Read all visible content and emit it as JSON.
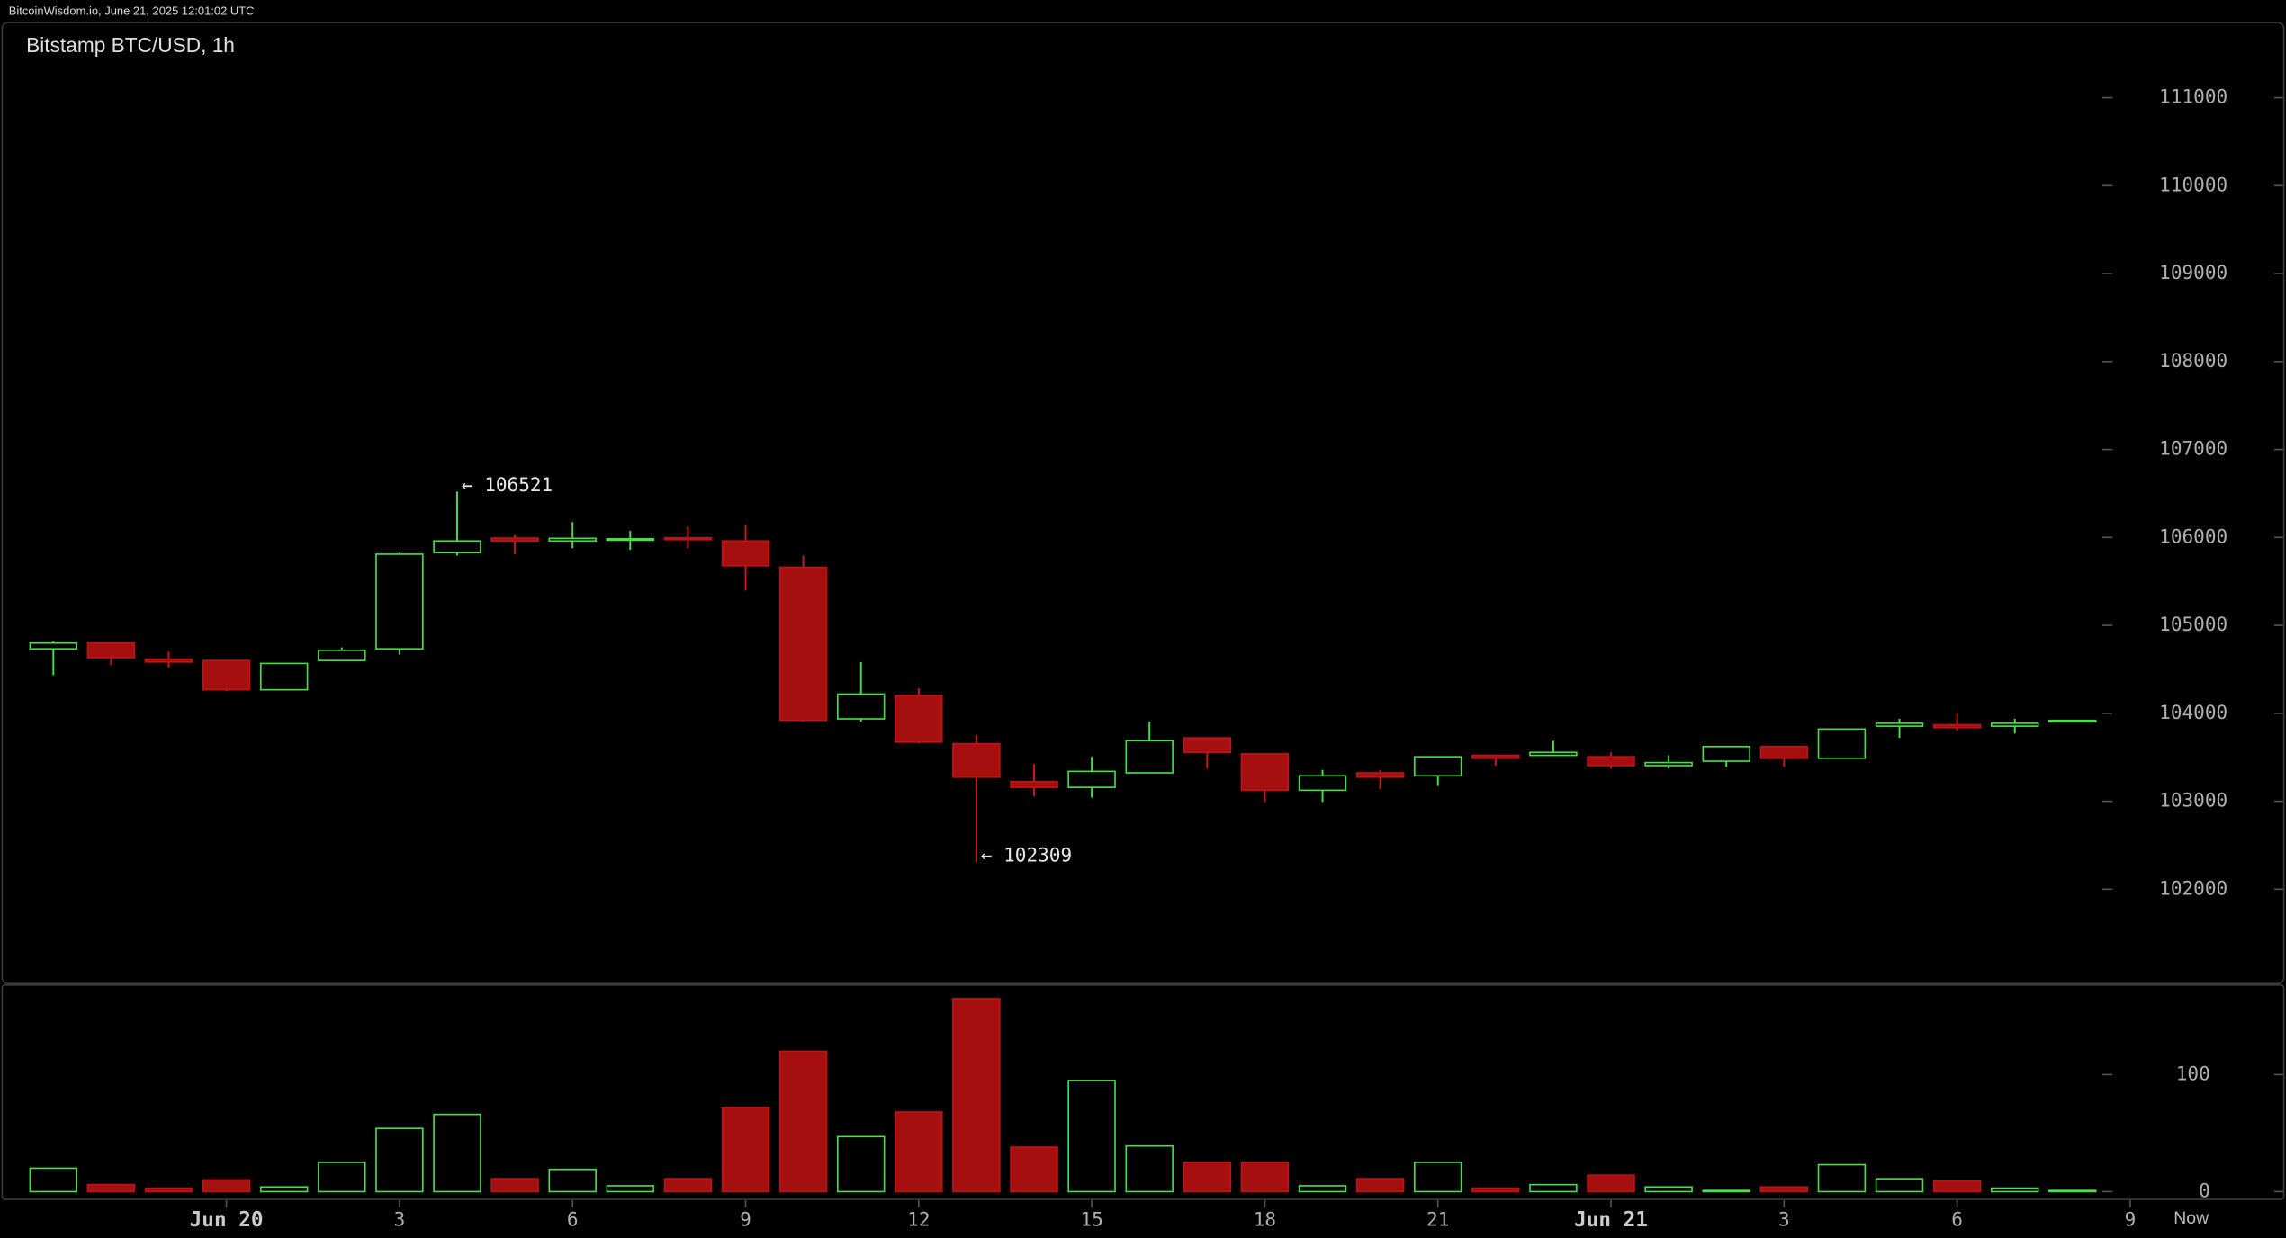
{
  "chart_data": {
    "type": "candlestick",
    "header": "BitcoinWisdom.io, June 21, 2025 12:01:02 UTC",
    "title": "Bitstamp BTC/USD, 1h",
    "up_color": "#47e047",
    "down_color": "#a50f0f",
    "x": [
      0,
      1,
      2,
      3,
      4,
      5,
      6,
      7,
      8,
      9,
      10,
      11,
      12,
      13,
      14,
      15,
      16,
      17,
      18,
      19,
      20,
      21,
      22,
      23,
      24,
      25,
      26,
      27,
      28,
      29,
      30,
      31,
      32,
      33,
      34,
      35
    ],
    "open": [
      104733,
      104799,
      104617,
      104600,
      104268,
      104600,
      104733,
      105827,
      105993,
      105960,
      105970,
      105995,
      105960,
      105661,
      103937,
      104202,
      103655,
      103224,
      103158,
      103323,
      103721,
      103539,
      103125,
      103323,
      103290,
      103522,
      103522,
      103506,
      103406,
      103456,
      103622,
      103489,
      103854,
      103870,
      103854,
      103904
    ],
    "high": [
      104816,
      104799,
      104700,
      104600,
      104567,
      104749,
      105826,
      106521,
      106026,
      106175,
      106076,
      106126,
      106142,
      105794,
      104583,
      104285,
      103755,
      103423,
      103506,
      103904,
      103721,
      103539,
      103357,
      103357,
      103506,
      103522,
      103688,
      103556,
      103522,
      103622,
      103622,
      103821,
      103937,
      104003,
      103937,
      103920
    ],
    "low": [
      104434,
      104550,
      104517,
      104252,
      104268,
      104600,
      104667,
      105794,
      105810,
      105877,
      105860,
      105877,
      105396,
      103904,
      103904,
      103655,
      102309,
      103058,
      103042,
      103323,
      103373,
      102992,
      102992,
      103141,
      103174,
      103406,
      103522,
      103373,
      103373,
      103390,
      103390,
      103489,
      103721,
      103804,
      103770,
      103904
    ],
    "close": [
      104799,
      104633,
      104583,
      104268,
      104567,
      104716,
      105810,
      105960,
      105960,
      105990,
      105985,
      105975,
      105678,
      103920,
      104219,
      103672,
      103274,
      103158,
      103340,
      103688,
      103556,
      103125,
      103290,
      103274,
      103506,
      103489,
      103556,
      103406,
      103440,
      103622,
      103489,
      103821,
      103887,
      103837,
      103887,
      103920
    ],
    "volume": [
      20,
      6,
      3,
      10,
      4,
      25,
      54,
      66,
      11,
      19,
      5,
      11,
      72,
      120,
      47,
      68,
      165,
      38,
      95,
      39,
      25,
      25,
      5,
      11,
      25,
      3,
      6,
      14,
      4,
      1,
      4,
      23,
      11,
      9,
      3,
      1
    ],
    "xlim": [
      -0.9,
      38.7
    ],
    "xticks": [
      {
        "value": 3,
        "label": "Jun 20"
      },
      {
        "value": 6,
        "label": "3"
      },
      {
        "value": 9,
        "label": "6"
      },
      {
        "value": 12,
        "label": "9"
      },
      {
        "value": 15,
        "label": "12"
      },
      {
        "value": 18,
        "label": "15"
      },
      {
        "value": 21,
        "label": "18"
      },
      {
        "value": 24,
        "label": "21"
      },
      {
        "value": 27,
        "label": "Jun 21"
      },
      {
        "value": 30,
        "label": "3"
      },
      {
        "value": 33,
        "label": "6"
      },
      {
        "value": 36,
        "label": "9"
      }
    ],
    "now_label": "Now",
    "ylim": [
      100936,
      111862
    ],
    "yticks": [
      102000,
      103000,
      104000,
      105000,
      106000,
      107000,
      108000,
      109000,
      110000,
      111000
    ],
    "volume_ylim": [
      -6,
      176
    ],
    "volume_yticks": [
      0,
      100
    ],
    "annotations": [
      {
        "text": "← 106521",
        "x": 7,
        "value": 106521
      },
      {
        "text": "← 102309",
        "x": 16,
        "value": 102309
      }
    ]
  }
}
